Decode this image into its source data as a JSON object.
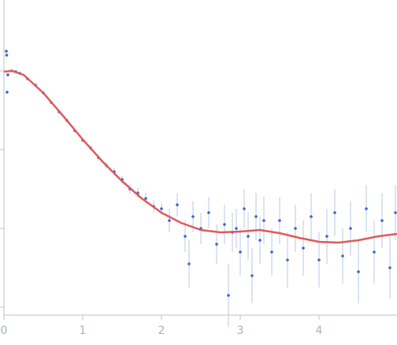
{
  "chart_data": {
    "type": "scatter",
    "x": [
      0.03,
      0.035,
      0.04,
      0.05,
      0.1,
      0.15,
      0.2,
      0.3,
      0.4,
      0.5,
      0.6,
      0.7,
      0.8,
      0.9,
      1.0,
      1.1,
      1.2,
      1.3,
      1.4,
      1.5,
      1.6,
      1.7,
      1.8,
      1.9,
      2.0,
      2.1,
      2.2,
      2.3,
      2.35,
      2.4,
      2.5,
      2.6,
      2.7,
      2.8,
      2.85,
      2.9,
      2.95,
      3.0,
      3.05,
      3.1,
      3.15,
      3.2,
      3.25,
      3.3,
      3.4,
      3.5,
      3.6,
      3.7,
      3.8,
      3.9,
      4.0,
      4.1,
      4.2,
      4.3,
      4.4,
      4.5,
      4.6,
      4.7,
      4.8,
      4.9,
      4.97
    ],
    "values": [
      0.25,
      0.2,
      -0.27,
      -0.05,
      0.0,
      -0.01,
      -0.03,
      -0.1,
      -0.18,
      -0.28,
      -0.4,
      -0.52,
      -0.63,
      -0.76,
      -0.88,
      -0.98,
      -1.1,
      -1.2,
      -1.28,
      -1.38,
      -1.5,
      -1.55,
      -1.62,
      -1.72,
      -1.75,
      -1.9,
      -1.7,
      -2.1,
      -2.45,
      -1.85,
      -2.0,
      -1.8,
      -2.2,
      -1.95,
      -2.85,
      -2.05,
      -2.0,
      -2.3,
      -1.75,
      -2.1,
      -2.6,
      -1.85,
      -2.15,
      -1.9,
      -2.3,
      -1.9,
      -2.4,
      -2.0,
      -2.25,
      -1.85,
      -2.4,
      -2.1,
      -1.8,
      -2.35,
      -2.0,
      -2.55,
      -1.75,
      -2.3,
      -1.9,
      -2.5,
      -1.8
    ],
    "errors": [
      0.02,
      0.02,
      0.02,
      0.02,
      0.01,
      0.01,
      0.01,
      0.01,
      0.01,
      0.01,
      0.01,
      0.02,
      0.02,
      0.02,
      0.03,
      0.03,
      0.04,
      0.04,
      0.05,
      0.05,
      0.06,
      0.06,
      0.07,
      0.08,
      0.08,
      0.15,
      0.15,
      0.2,
      0.3,
      0.2,
      0.2,
      0.2,
      0.25,
      0.25,
      0.4,
      0.25,
      0.25,
      0.3,
      0.25,
      0.3,
      0.35,
      0.3,
      0.3,
      0.3,
      0.3,
      0.3,
      0.35,
      0.3,
      0.35,
      0.3,
      0.35,
      0.35,
      0.3,
      0.35,
      0.35,
      0.4,
      0.3,
      0.4,
      0.35,
      0.4,
      0.35
    ],
    "color": "#3b67c2",
    "error_color": "#b9c8e6",
    "fit": {
      "x": [
        0,
        0.1,
        0.25,
        0.5,
        0.75,
        1.0,
        1.25,
        1.5,
        1.75,
        2.0,
        2.25,
        2.5,
        2.75,
        3.0,
        3.25,
        3.5,
        3.75,
        4.0,
        4.25,
        4.5,
        4.75,
        4.99
      ],
      "values": [
        -0.01,
        0.0,
        -0.05,
        -0.28,
        -0.57,
        -0.87,
        -1.15,
        -1.4,
        -1.62,
        -1.8,
        -1.93,
        -2.02,
        -2.05,
        -2.04,
        -2.02,
        -2.06,
        -2.12,
        -2.17,
        -2.18,
        -2.15,
        -2.1,
        -2.07
      ],
      "color": "#e05a5a"
    },
    "xlim": [
      0,
      4.99
    ],
    "xticks": [
      0,
      1,
      2,
      3,
      4
    ],
    "ylim": [
      -3.1,
      0.9
    ],
    "yticks": [
      -3,
      -2,
      -1,
      0
    ]
  }
}
